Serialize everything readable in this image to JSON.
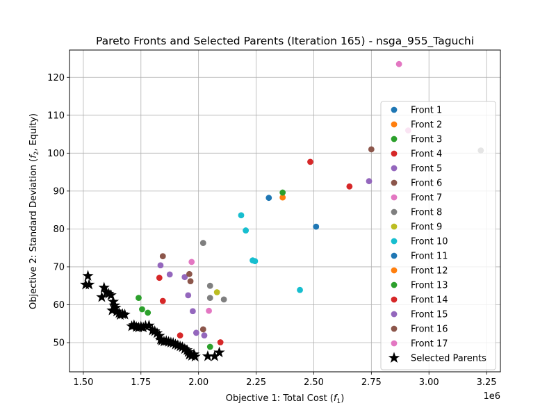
{
  "chart_data": {
    "type": "scatter",
    "title": "Pareto Fronts and Selected Parents (Iteration 165) - nsga_955_Taguchi",
    "xlabel_text": "Objective 1: Total Cost (",
    "xlabel_math": "f",
    "xlabel_sub": "1",
    "xlabel_end": ")",
    "ylabel_text": "Objective 2: Standard Deviation (",
    "ylabel_math": "f",
    "ylabel_sub": "2",
    "ylabel_end": ", Equity)",
    "x_offset_label": "1e6",
    "xlim": [
      1.44,
      3.31
    ],
    "ylim": [
      42.3,
      127.2
    ],
    "xticks": [
      1.5,
      1.75,
      2.0,
      2.25,
      2.5,
      2.75,
      3.0,
      3.25
    ],
    "xtick_labels": [
      "1.50",
      "1.75",
      "2.00",
      "2.25",
      "2.50",
      "2.75",
      "3.00",
      "3.25"
    ],
    "yticks": [
      50,
      60,
      70,
      80,
      90,
      100,
      110,
      120
    ],
    "ytick_labels": [
      "50",
      "60",
      "70",
      "80",
      "90",
      "100",
      "110",
      "120"
    ],
    "grid": true,
    "legend_position": "right",
    "series": [
      {
        "name": "Front 1",
        "color": "#1f77b4",
        "points": [
          [
            2.305,
            88.2
          ],
          [
            2.51,
            80.6
          ]
        ]
      },
      {
        "name": "Front 2",
        "color": "#ff7f0e",
        "points": [
          [
            2.365,
            88.3
          ]
        ]
      },
      {
        "name": "Front 3",
        "color": "#2ca02c",
        "points": [
          [
            2.365,
            89.6
          ],
          [
            1.74,
            61.8
          ],
          [
            1.755,
            58.8
          ],
          [
            1.78,
            57.9
          ],
          [
            2.05,
            48.9
          ]
        ]
      },
      {
        "name": "Front 4",
        "color": "#d62728",
        "points": [
          [
            2.485,
            97.7
          ],
          [
            2.655,
            91.2
          ],
          [
            1.83,
            67.1
          ],
          [
            1.845,
            61.0
          ],
          [
            1.92,
            51.9
          ],
          [
            2.095,
            50.1
          ]
        ]
      },
      {
        "name": "Front 5",
        "color": "#9467bd",
        "points": [
          [
            2.74,
            92.6
          ],
          [
            1.835,
            70.4
          ],
          [
            1.875,
            68.0
          ],
          [
            1.94,
            67.3
          ],
          [
            1.955,
            62.5
          ],
          [
            1.975,
            58.3
          ],
          [
            1.99,
            52.6
          ],
          [
            2.025,
            51.9
          ]
        ]
      },
      {
        "name": "Front 6",
        "color": "#8c564b",
        "points": [
          [
            2.75,
            101.0
          ],
          [
            1.845,
            72.8
          ],
          [
            1.96,
            68.1
          ],
          [
            1.965,
            66.2
          ],
          [
            2.02,
            53.5
          ]
        ]
      },
      {
        "name": "Front 7",
        "color": "#e377c2",
        "points": [
          [
            2.87,
            123.5
          ],
          [
            1.97,
            71.3
          ],
          [
            2.045,
            58.4
          ]
        ]
      },
      {
        "name": "Front 8",
        "color": "#7f7f7f",
        "points": [
          [
            3.225,
            100.7
          ],
          [
            2.02,
            76.3
          ],
          [
            2.05,
            65.0
          ],
          [
            2.05,
            61.8
          ],
          [
            2.11,
            61.4
          ]
        ]
      },
      {
        "name": "Front 9",
        "color": "#bcbd22",
        "points": [
          [
            2.08,
            63.3
          ]
        ]
      },
      {
        "name": "Front 10",
        "color": "#17becf",
        "points": [
          [
            2.185,
            83.6
          ],
          [
            2.205,
            79.6
          ],
          [
            2.235,
            71.7
          ],
          [
            2.245,
            71.5
          ],
          [
            2.44,
            63.9
          ]
        ]
      },
      {
        "name": "Front 11",
        "color": "#1f77b4",
        "points": []
      },
      {
        "name": "Front 12",
        "color": "#ff7f0e",
        "points": []
      },
      {
        "name": "Front 13",
        "color": "#2ca02c",
        "points": []
      },
      {
        "name": "Front 14",
        "color": "#d62728",
        "points": []
      },
      {
        "name": "Front 15",
        "color": "#9467bd",
        "points": []
      },
      {
        "name": "Front 16",
        "color": "#8c564b",
        "points": []
      },
      {
        "name": "Front 17",
        "color": "#e377c2",
        "points": [
          [
            2.91,
            106.0
          ]
        ]
      }
    ],
    "selected_parents": {
      "name": "Selected Parents",
      "color": "#000000",
      "points": [
        [
          1.52,
          67.6
        ],
        [
          1.51,
          65.3
        ],
        [
          1.525,
          65.3
        ],
        [
          1.58,
          62.0
        ],
        [
          1.59,
          64.5
        ],
        [
          1.6,
          63.3
        ],
        [
          1.61,
          62.9
        ],
        [
          1.62,
          62.5
        ],
        [
          1.63,
          60.8
        ],
        [
          1.625,
          58.5
        ],
        [
          1.635,
          59.8
        ],
        [
          1.64,
          59.2
        ],
        [
          1.645,
          58.2
        ],
        [
          1.655,
          57.8
        ],
        [
          1.66,
          57.3
        ],
        [
          1.67,
          57.5
        ],
        [
          1.68,
          57.4
        ],
        [
          1.71,
          54.3
        ],
        [
          1.72,
          54.6
        ],
        [
          1.73,
          54.1
        ],
        [
          1.74,
          54.0
        ],
        [
          1.75,
          54.2
        ],
        [
          1.76,
          54.0
        ],
        [
          1.77,
          54.4
        ],
        [
          1.785,
          54.5
        ],
        [
          1.8,
          53.2
        ],
        [
          1.81,
          53.0
        ],
        [
          1.82,
          52.5
        ],
        [
          1.83,
          51.8
        ],
        [
          1.835,
          50.8
        ],
        [
          1.84,
          50.5
        ],
        [
          1.85,
          50.3
        ],
        [
          1.86,
          50.4
        ],
        [
          1.87,
          50.2
        ],
        [
          1.88,
          50.0
        ],
        [
          1.89,
          49.9
        ],
        [
          1.9,
          49.5
        ],
        [
          1.91,
          49.3
        ],
        [
          1.92,
          49.0
        ],
        [
          1.93,
          48.8
        ],
        [
          1.94,
          48.3
        ],
        [
          1.95,
          48.0
        ],
        [
          1.955,
          47.5
        ],
        [
          1.96,
          46.8
        ],
        [
          1.97,
          46.5
        ],
        [
          1.98,
          46.9
        ],
        [
          1.985,
          46.3
        ],
        [
          2.04,
          46.4
        ],
        [
          2.07,
          46.4
        ],
        [
          2.09,
          47.4
        ]
      ]
    }
  }
}
